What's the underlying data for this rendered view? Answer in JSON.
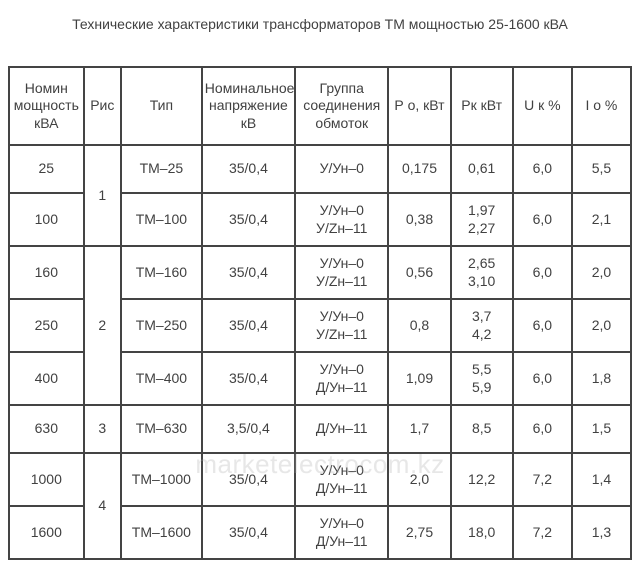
{
  "title": "Технические характеристики трансформаторов ТМ мощностью 25-1600 кВА",
  "watermark": "marketelectrocom.kz",
  "columns": [
    "Номин\nмощность\nкВА",
    "Рис",
    "Тип",
    "Номинальное\nнапряжение\nкВ",
    "Группа\nсоединения\nобмоток",
    "Р о,\nкВт",
    "Рк\nкВт",
    "U к\n%",
    "I о\n%"
  ],
  "groups": [
    {
      "ris": "1",
      "rows": [
        {
          "power": "25",
          "type": "ТМ–25",
          "voltage": "35/0,4",
          "conn": "У/Ун–0",
          "p0": "0,175",
          "pk": "0,61",
          "uk": "6,0",
          "i0": "5,5"
        },
        {
          "power": "100",
          "type": "ТМ–100",
          "voltage": "35/0,4",
          "conn": "У/Ун–0\nУ/Zн–11",
          "p0": "0,38",
          "pk": "1,97\n2,27",
          "uk": "6,0",
          "i0": "2,1"
        }
      ]
    },
    {
      "ris": "2",
      "rows": [
        {
          "power": "160",
          "type": "ТМ–160",
          "voltage": "35/0,4",
          "conn": "У/Ун–0\nУ/Zн–11",
          "p0": "0,56",
          "pk": "2,65\n3,10",
          "uk": "6,0",
          "i0": "2,0"
        },
        {
          "power": "250",
          "type": "ТМ–250",
          "voltage": "35/0,4",
          "conn": "У/Ун–0\nУ/Zн–11",
          "p0": "0,8",
          "pk": "3,7\n4,2",
          "uk": "6,0",
          "i0": "2,0"
        },
        {
          "power": "400",
          "type": "ТМ–400",
          "voltage": "35/0,4",
          "conn": "У/Ун–0\nД/Ун–11",
          "p0": "1,09",
          "pk": "5,5\n5,9",
          "uk": "6,0",
          "i0": "1,8"
        }
      ]
    },
    {
      "ris": "3",
      "rows": [
        {
          "power": "630",
          "type": "ТМ–630",
          "voltage": "3,5/0,4",
          "conn": "Д/Ун–11",
          "p0": "1,7",
          "pk": "8,5",
          "uk": "6,0",
          "i0": "1,5"
        }
      ]
    },
    {
      "ris": "4",
      "rows": [
        {
          "power": "1000",
          "type": "ТМ–1000",
          "voltage": "35/0,4",
          "conn": "У/Ун–0\nД/Ун–11",
          "p0": "2,0",
          "pk": "12,2",
          "uk": "7,2",
          "i0": "1,4"
        },
        {
          "power": "1600",
          "type": "ТМ–1600",
          "voltage": "35/0,4",
          "conn": "У/Ун–0\nД/Ун–11",
          "p0": "2,75",
          "pk": "18,0",
          "uk": "7,2",
          "i0": "1,3"
        }
      ]
    }
  ]
}
